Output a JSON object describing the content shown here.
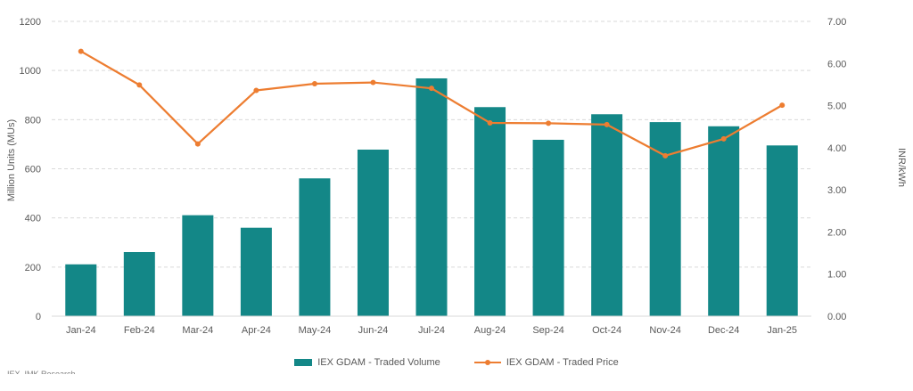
{
  "chart_data": {
    "type": "bar",
    "categories": [
      "Jan-24",
      "Feb-24",
      "Mar-24",
      "Apr-24",
      "May-24",
      "Jun-24",
      "Jul-24",
      "Aug-24",
      "Sep-24",
      "Oct-24",
      "Nov-24",
      "Dec-24",
      "Jan-25"
    ],
    "series": [
      {
        "name": "IEX GDAM - Traded Volume",
        "type": "bar",
        "axis": "left",
        "color": "#138787",
        "values": [
          211,
          261,
          411,
          360,
          561,
          678,
          968,
          851,
          718,
          822,
          790,
          773,
          695
        ]
      },
      {
        "name": "IEX GDAM - Traded Price",
        "type": "line",
        "axis": "right",
        "color": "#ed7d31",
        "values": [
          6.29,
          5.49,
          4.09,
          5.36,
          5.52,
          5.55,
          5.41,
          4.59,
          4.58,
          4.55,
          3.81,
          4.21,
          5.01
        ]
      }
    ],
    "ylabel": "Million Units (MUs)",
    "y2label": "INR/kWh",
    "ylim": [
      0,
      1200
    ],
    "y2lim": [
      0,
      7
    ],
    "yticks": [
      "0",
      "200",
      "400",
      "600",
      "800",
      "1000",
      "1200"
    ],
    "y2ticks": [
      "0.00",
      "1.00",
      "2.00",
      "3.00",
      "4.00",
      "5.00",
      "6.00",
      "7.00"
    ],
    "grid": true,
    "legend_position": "bottom"
  },
  "source_note": "IEX, IMK Research"
}
